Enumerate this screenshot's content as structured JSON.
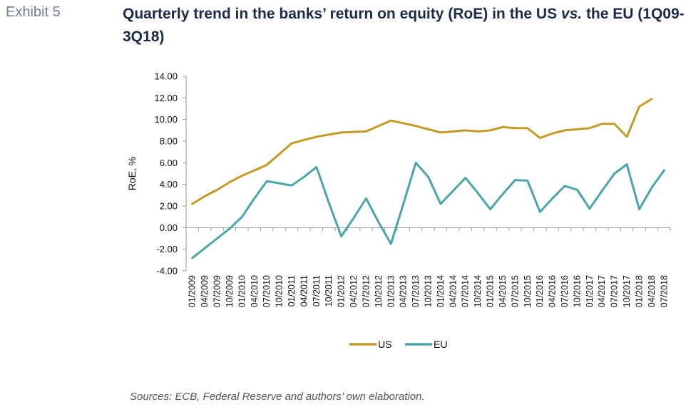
{
  "header": {
    "exhibit": "Exhibit 5",
    "title_part1": "Quarterly trend in the banks’ return on equity (RoE) in the US ",
    "title_vs": "vs.",
    "title_part2": " the EU (1Q09-3Q18)"
  },
  "source": "Sources: ECB, Federal Reserve and authors’ own elaboration.",
  "colors": {
    "US": "#c49a26",
    "EU": "#4aa5a8",
    "axis": "#999999"
  },
  "chart_data": {
    "type": "line",
    "ylabel": "RoE, %",
    "xlabel": "",
    "ylim": [
      -4,
      14
    ],
    "yticks": [
      "14.00",
      "12.00",
      "10.00",
      "8.00",
      "6.00",
      "4.00",
      "2.00",
      "0.00",
      "-2.00",
      "-4.00"
    ],
    "grid": false,
    "legend": "bottom",
    "categories": [
      "01/2009",
      "04/2009",
      "07/2009",
      "10/2009",
      "01/2010",
      "04/2010",
      "07/2010",
      "10/2010",
      "01/2011",
      "04/2011",
      "07/2011",
      "10/2011",
      "01/2012",
      "04/2012",
      "07/2012",
      "10/2012",
      "01/2013",
      "04/2013",
      "07/2013",
      "10/2013",
      "01/2014",
      "04/2014",
      "07/2014",
      "10/2014",
      "01/2015",
      "04/2015",
      "07/2015",
      "10/2015",
      "01/2016",
      "04/2016",
      "07/2016",
      "10/2016",
      "01/2017",
      "04/2017",
      "07/2017",
      "10/2017",
      "01/2018",
      "04/2018",
      "07/2018"
    ],
    "series": [
      {
        "name": "US",
        "values": [
          2.2,
          2.9,
          3.5,
          4.2,
          4.8,
          5.3,
          5.8,
          6.8,
          7.8,
          8.1,
          8.4,
          8.6,
          8.8,
          8.85,
          8.9,
          9.4,
          9.9,
          9.65,
          9.4,
          9.1,
          8.8,
          8.9,
          9.0,
          8.9,
          9.0,
          9.3,
          9.2,
          9.2,
          8.3,
          8.7,
          9.0,
          9.1,
          9.2,
          9.6,
          9.6,
          8.4,
          11.2,
          11.9,
          null
        ]
      },
      {
        "name": "EU",
        "values": [
          -2.8,
          -1.9,
          -1.0,
          -0.1,
          1.0,
          2.7,
          4.3,
          4.1,
          3.9,
          4.7,
          5.6,
          2.3,
          -0.8,
          0.9,
          2.7,
          0.5,
          -1.5,
          2.2,
          6.0,
          4.7,
          2.2,
          3.4,
          4.6,
          3.2,
          1.7,
          3.1,
          4.4,
          4.35,
          1.45,
          2.7,
          3.85,
          3.5,
          1.75,
          3.4,
          5.0,
          5.85,
          1.7,
          3.7,
          5.3
        ]
      }
    ]
  }
}
